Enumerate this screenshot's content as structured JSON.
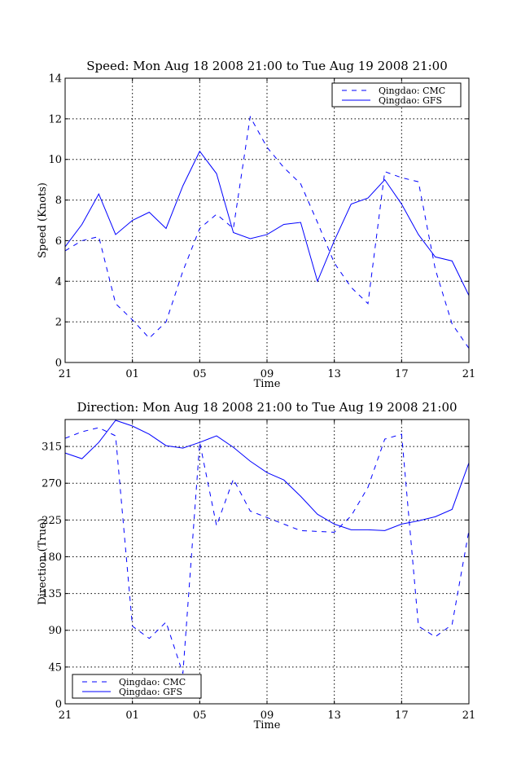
{
  "chart_data": [
    {
      "type": "line",
      "title": "Speed: Mon Aug 18 2008 21:00 to Tue Aug 19 2008 21:00",
      "xlabel": "Time",
      "ylabel": "Speed (Knots)",
      "x": [
        0,
        1,
        2,
        3,
        4,
        5,
        6,
        7,
        8,
        9,
        10,
        11,
        12,
        13,
        14,
        15,
        16,
        17,
        18,
        19,
        20,
        21,
        22,
        23,
        24
      ],
      "xticks": [
        {
          "pos": 0,
          "label": "21"
        },
        {
          "pos": 4,
          "label": "01"
        },
        {
          "pos": 8,
          "label": "05"
        },
        {
          "pos": 12,
          "label": "09"
        },
        {
          "pos": 16,
          "label": "13"
        },
        {
          "pos": 20,
          "label": "17"
        },
        {
          "pos": 24,
          "label": "21"
        }
      ],
      "xlim": [
        0,
        24
      ],
      "ylim": [
        0,
        14
      ],
      "yticks": [
        0,
        2,
        4,
        6,
        8,
        10,
        12,
        14
      ],
      "ytick_labels": [
        "0",
        "2",
        "4",
        "6",
        "8",
        "10",
        "12",
        "14"
      ],
      "grid": true,
      "legend": "top-right",
      "series": [
        {
          "name": "Qingdao: CMC",
          "style": "dashed",
          "color": "#0000ff",
          "values": [
            5.5,
            6.0,
            6.2,
            2.9,
            2.1,
            1.2,
            2.0,
            4.5,
            6.6,
            7.3,
            6.6,
            12.1,
            10.6,
            9.6,
            8.8,
            6.9,
            4.9,
            3.7,
            2.9,
            9.4,
            9.1,
            8.9,
            4.6,
            1.9,
            0.7
          ]
        },
        {
          "name": "Qingdao: GFS",
          "style": "solid",
          "color": "#0000ff",
          "values": [
            5.7,
            6.8,
            8.3,
            6.3,
            7.0,
            7.4,
            6.6,
            8.7,
            10.4,
            9.3,
            6.4,
            6.1,
            6.3,
            6.8,
            6.9,
            4.0,
            6.0,
            7.8,
            8.1,
            9.0,
            7.8,
            6.3,
            5.2,
            5.0,
            3.3
          ]
        }
      ]
    },
    {
      "type": "line",
      "title": "Direction: Mon Aug 18 2008 21:00 to Tue Aug 19 2008 21:00",
      "xlabel": "Time",
      "ylabel": "Direction (True)",
      "x": [
        0,
        1,
        2,
        3,
        4,
        5,
        6,
        7,
        8,
        9,
        10,
        11,
        12,
        13,
        14,
        15,
        16,
        17,
        18,
        19,
        20,
        21,
        22,
        23,
        24
      ],
      "xticks": [
        {
          "pos": 0,
          "label": "21"
        },
        {
          "pos": 4,
          "label": "01"
        },
        {
          "pos": 8,
          "label": "05"
        },
        {
          "pos": 12,
          "label": "09"
        },
        {
          "pos": 16,
          "label": "13"
        },
        {
          "pos": 20,
          "label": "17"
        },
        {
          "pos": 24,
          "label": "21"
        }
      ],
      "xlim": [
        0,
        24
      ],
      "ylim": [
        0,
        348
      ],
      "yticks": [
        0,
        45,
        90,
        135,
        180,
        225,
        270,
        315
      ],
      "ytick_labels": [
        "0",
        "45",
        "90",
        "135",
        "180",
        "225",
        "270",
        "315"
      ],
      "grid": true,
      "legend": "bottom-left",
      "series": [
        {
          "name": "Qingdao: CMC",
          "style": "dashed",
          "color": "#0000ff",
          "values": [
            325,
            333,
            338,
            328,
            95,
            80,
            100,
            37,
            320,
            218,
            275,
            236,
            228,
            220,
            212,
            211,
            210,
            230,
            265,
            324,
            330,
            95,
            82,
            97,
            212
          ]
        },
        {
          "name": "Qingdao: GFS",
          "style": "solid",
          "color": "#0000ff",
          "values": [
            307,
            300,
            320,
            347,
            340,
            330,
            316,
            313,
            320,
            328,
            314,
            297,
            283,
            274,
            254,
            232,
            220,
            213,
            213,
            212,
            220,
            224,
            229,
            238,
            295
          ]
        }
      ]
    }
  ]
}
